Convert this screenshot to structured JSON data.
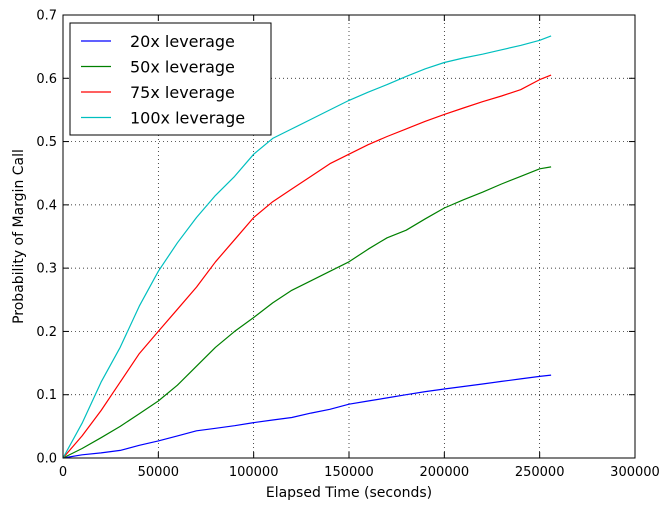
{
  "chart_data": {
    "type": "line",
    "title": "",
    "xlabel": "Elapsed Time (seconds)",
    "ylabel": "Probability of Margin Call",
    "xlim": [
      0,
      300000
    ],
    "ylim": [
      0,
      0.7
    ],
    "xticks": [
      0,
      50000,
      100000,
      150000,
      200000,
      250000,
      300000
    ],
    "yticks": [
      0.0,
      0.1,
      0.2,
      0.3,
      0.4,
      0.5,
      0.6,
      0.7
    ],
    "xtick_labels": [
      "0",
      "50000",
      "100000",
      "150000",
      "200000",
      "250000",
      "300000"
    ],
    "ytick_labels": [
      "0.0",
      "0.1",
      "0.2",
      "0.3",
      "0.4",
      "0.5",
      "0.6",
      "0.7"
    ],
    "grid": true,
    "grid_style": "dotted",
    "legend_position": "top-left",
    "series": [
      {
        "name": "20x leverage",
        "color": "#0000ff",
        "x": [
          0,
          10000,
          20000,
          30000,
          40000,
          50000,
          60000,
          70000,
          80000,
          90000,
          100000,
          110000,
          120000,
          130000,
          140000,
          150000,
          160000,
          170000,
          180000,
          190000,
          200000,
          210000,
          220000,
          230000,
          240000,
          250000,
          256000
        ],
        "y": [
          0,
          0.005,
          0.008,
          0.012,
          0.02,
          0.027,
          0.035,
          0.043,
          0.047,
          0.051,
          0.056,
          0.06,
          0.064,
          0.071,
          0.077,
          0.085,
          0.09,
          0.095,
          0.1,
          0.105,
          0.109,
          0.113,
          0.117,
          0.121,
          0.125,
          0.129,
          0.131
        ]
      },
      {
        "name": "50x leverage",
        "color": "#008000",
        "x": [
          0,
          10000,
          20000,
          30000,
          40000,
          50000,
          60000,
          70000,
          80000,
          90000,
          100000,
          110000,
          120000,
          130000,
          140000,
          150000,
          160000,
          170000,
          180000,
          190000,
          200000,
          210000,
          220000,
          230000,
          240000,
          250000,
          256000
        ],
        "y": [
          0,
          0.015,
          0.032,
          0.05,
          0.07,
          0.09,
          0.115,
          0.145,
          0.175,
          0.2,
          0.222,
          0.245,
          0.265,
          0.28,
          0.295,
          0.31,
          0.33,
          0.348,
          0.36,
          0.378,
          0.395,
          0.408,
          0.42,
          0.433,
          0.445,
          0.457,
          0.46
        ]
      },
      {
        "name": "75x leverage",
        "color": "#ff0000",
        "x": [
          0,
          10000,
          20000,
          30000,
          40000,
          50000,
          60000,
          70000,
          80000,
          90000,
          100000,
          110000,
          120000,
          130000,
          140000,
          150000,
          160000,
          170000,
          180000,
          190000,
          200000,
          210000,
          220000,
          230000,
          240000,
          250000,
          256000
        ],
        "y": [
          0,
          0.035,
          0.075,
          0.12,
          0.165,
          0.2,
          0.235,
          0.27,
          0.31,
          0.345,
          0.38,
          0.405,
          0.425,
          0.445,
          0.465,
          0.48,
          0.495,
          0.508,
          0.52,
          0.532,
          0.543,
          0.553,
          0.563,
          0.572,
          0.582,
          0.598,
          0.605
        ]
      },
      {
        "name": "100x leverage",
        "color": "#00bfbf",
        "x": [
          0,
          10000,
          20000,
          30000,
          40000,
          50000,
          60000,
          70000,
          80000,
          90000,
          100000,
          110000,
          120000,
          130000,
          140000,
          150000,
          160000,
          170000,
          180000,
          190000,
          200000,
          210000,
          220000,
          230000,
          240000,
          250000,
          256000
        ],
        "y": [
          0,
          0.055,
          0.12,
          0.175,
          0.24,
          0.295,
          0.34,
          0.38,
          0.415,
          0.445,
          0.48,
          0.505,
          0.52,
          0.535,
          0.55,
          0.565,
          0.578,
          0.59,
          0.603,
          0.615,
          0.625,
          0.632,
          0.638,
          0.645,
          0.652,
          0.66,
          0.667
        ]
      }
    ]
  }
}
